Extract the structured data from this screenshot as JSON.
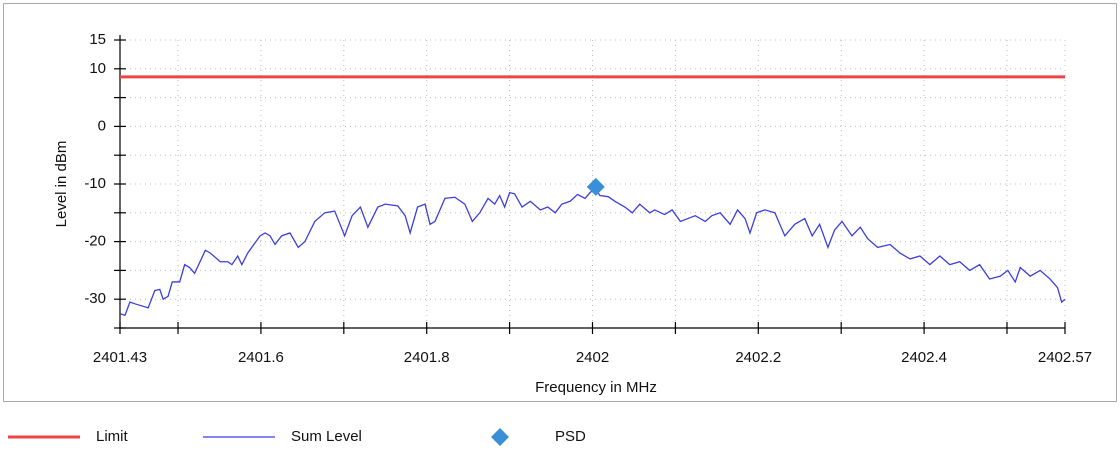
{
  "chart_data": {
    "type": "line",
    "xlabel": "Frequency in MHz",
    "ylabel": "Level in dBm",
    "xlim": [
      2401.43,
      2402.57
    ],
    "xticks": [
      2401.43,
      2401.6,
      2401.8,
      2402,
      2402.2,
      2402.4,
      2402.57
    ],
    "xticks_minor": [
      2401.5,
      2401.7,
      2401.9,
      2402.1,
      2402.3,
      2402.5
    ],
    "ylim": [
      -35,
      15
    ],
    "yticks": [
      -30,
      -20,
      -10,
      0,
      10,
      15
    ],
    "yticks_minor": [
      -35,
      -25,
      -15,
      -5,
      5
    ],
    "grid": true,
    "legend": "bottom",
    "series": [
      {
        "name": "Limit",
        "color": "#ef4444",
        "line_width": 3,
        "x": [
          2401.43,
          2402.57
        ],
        "values": [
          8.6,
          8.6
        ]
      },
      {
        "name": "Sum Level",
        "color": "#3b3fe0",
        "line_width": 1.3,
        "x": [
          2401.43,
          2401.436,
          2401.442,
          2401.448,
          2401.464,
          2401.472,
          2401.478,
          2401.482,
          2401.488,
          2401.493,
          2401.502,
          2401.508,
          2401.514,
          2401.52,
          2401.533,
          2401.539,
          2401.551,
          2401.56,
          2401.565,
          2401.572,
          2401.577,
          2401.584,
          2401.599,
          2401.605,
          2401.611,
          2401.617,
          2401.625,
          2401.635,
          2401.645,
          2401.653,
          2401.665,
          2401.677,
          2401.689,
          2401.701,
          2401.71,
          2401.72,
          2401.729,
          2401.741,
          2401.75,
          2401.765,
          2401.774,
          2401.78,
          2401.789,
          2401.798,
          2401.804,
          2401.81,
          2401.822,
          2401.834,
          2401.846,
          2401.855,
          2401.864,
          2401.874,
          2401.882,
          2401.888,
          2401.894,
          2401.9,
          2401.906,
          2401.915,
          2401.925,
          2401.937,
          2401.946,
          2401.955,
          2401.963,
          2401.973,
          2401.982,
          2401.991,
          2401.997,
          2402.003,
          2402.009,
          2402.019,
          2402.027,
          2402.039,
          2402.048,
          2402.057,
          2402.069,
          2402.075,
          2402.087,
          2402.096,
          2402.106,
          2402.115,
          2402.124,
          2402.136,
          2402.144,
          2402.154,
          2402.166,
          2402.175,
          2402.184,
          2402.19,
          2402.198,
          2402.208,
          2402.22,
          2402.232,
          2402.244,
          2402.256,
          2402.265,
          2402.274,
          2402.284,
          2402.292,
          2402.301,
          2402.313,
          2402.323,
          2402.332,
          2402.344,
          2402.359,
          2402.371,
          2402.383,
          2402.395,
          2402.407,
          2402.419,
          2402.431,
          2402.443,
          2402.455,
          2402.467,
          2402.479,
          2402.492,
          2402.501,
          2402.51,
          2402.516,
          2402.528,
          2402.54,
          2402.552,
          2402.561,
          2402.566,
          2402.57
        ],
        "values": [
          -32.5,
          -32.8,
          -30.5,
          -30.8,
          -31.5,
          -28.5,
          -28.3,
          -30,
          -29.5,
          -27,
          -27,
          -24,
          -24.5,
          -25.5,
          -21.5,
          -22,
          -23.5,
          -23.5,
          -24,
          -22.5,
          -24,
          -22,
          -19,
          -18.5,
          -19,
          -20.5,
          -19,
          -18.5,
          -21,
          -20,
          -16.5,
          -15,
          -14.7,
          -19,
          -15.5,
          -14,
          -17.5,
          -14,
          -13.5,
          -13.8,
          -15.5,
          -18.5,
          -14,
          -13.5,
          -17,
          -16.5,
          -12.5,
          -12.3,
          -13.5,
          -16.5,
          -15,
          -12.5,
          -13.5,
          -12,
          -14,
          -11.5,
          -11.7,
          -14,
          -13,
          -14.5,
          -14,
          -15,
          -13.5,
          -13,
          -11.8,
          -12.5,
          -11.5,
          -10.8,
          -12,
          -12.2,
          -13,
          -14,
          -15,
          -13.5,
          -15,
          -14.5,
          -15.3,
          -14.5,
          -16.5,
          -16,
          -15.5,
          -16.5,
          -15.5,
          -15,
          -17,
          -14.5,
          -16,
          -18.5,
          -15,
          -14.5,
          -15,
          -19,
          -17,
          -16,
          -19,
          -17,
          -21,
          -18,
          -16.5,
          -19,
          -17.5,
          -19.5,
          -21,
          -20.5,
          -22,
          -23,
          -22.5,
          -24,
          -22.5,
          -24,
          -23.5,
          -25,
          -24,
          -26.5,
          -26,
          -25,
          -27,
          -24.5,
          -26,
          -25,
          -26.5,
          -28,
          -30.5,
          -30
        ]
      },
      {
        "name": "PSD",
        "color": "#3a8fd9",
        "marker": "diamond",
        "x": [
          2402.004
        ],
        "values": [
          -10.5
        ]
      }
    ]
  }
}
